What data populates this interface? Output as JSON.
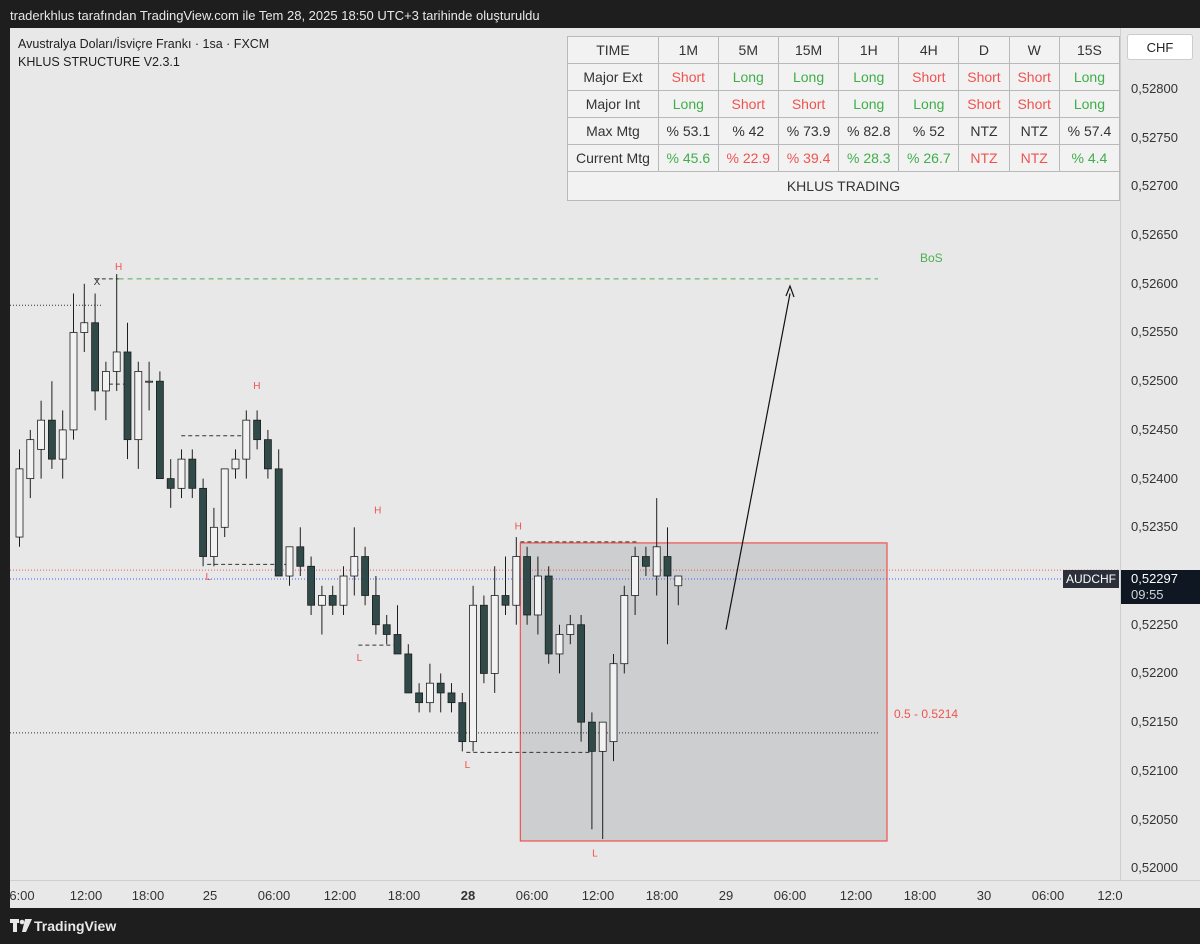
{
  "header": {
    "caption": "traderkhlus tarafından TradingView.com ile Tem 28, 2025 18:50 UTC+3 tarihinde oluşturuldu"
  },
  "legend": {
    "symbol_line": "Avustralya Doları/İsviçre Frankı · 1sa · FXCM",
    "indicator_line": "KHLUS STRUCTURE V2.3.1"
  },
  "table": {
    "headers": [
      "TIME",
      "1M",
      "5M",
      "15M",
      "1H",
      "4H",
      "D",
      "W",
      "15S"
    ],
    "rows": [
      {
        "label": "Major Ext",
        "cells": [
          {
            "text": "Short",
            "color": "#ef5350"
          },
          {
            "text": "Long",
            "color": "#3fae4a"
          },
          {
            "text": "Long",
            "color": "#3fae4a"
          },
          {
            "text": "Long",
            "color": "#3fae4a"
          },
          {
            "text": "Short",
            "color": "#ef5350"
          },
          {
            "text": "Short",
            "color": "#ef5350"
          },
          {
            "text": "Short",
            "color": "#ef5350"
          },
          {
            "text": "Long",
            "color": "#3fae4a"
          }
        ]
      },
      {
        "label": "Major Int",
        "cells": [
          {
            "text": "Long",
            "color": "#3fae4a"
          },
          {
            "text": "Short",
            "color": "#ef5350"
          },
          {
            "text": "Short",
            "color": "#ef5350"
          },
          {
            "text": "Long",
            "color": "#3fae4a"
          },
          {
            "text": "Long",
            "color": "#3fae4a"
          },
          {
            "text": "Short",
            "color": "#ef5350"
          },
          {
            "text": "Short",
            "color": "#ef5350"
          },
          {
            "text": "Long",
            "color": "#3fae4a"
          }
        ]
      },
      {
        "label": "Max Mtg",
        "cells": [
          {
            "text": "% 53.1",
            "color": "#333333"
          },
          {
            "text": "% 42",
            "color": "#333333"
          },
          {
            "text": "% 73.9",
            "color": "#333333"
          },
          {
            "text": "% 82.8",
            "color": "#333333"
          },
          {
            "text": "% 52",
            "color": "#333333"
          },
          {
            "text": "NTZ",
            "color": "#333333"
          },
          {
            "text": "NTZ",
            "color": "#333333"
          },
          {
            "text": "% 57.4",
            "color": "#333333"
          }
        ]
      },
      {
        "label": "Current Mtg",
        "cells": [
          {
            "text": "% 45.6",
            "color": "#3fae4a"
          },
          {
            "text": "% 22.9",
            "color": "#ef5350"
          },
          {
            "text": "% 39.4",
            "color": "#ef5350"
          },
          {
            "text": "% 28.3",
            "color": "#3fae4a"
          },
          {
            "text": "% 26.7",
            "color": "#3fae4a"
          },
          {
            "text": "NTZ",
            "color": "#ef5350"
          },
          {
            "text": "NTZ",
            "color": "#ef5350"
          },
          {
            "text": "% 4.4",
            "color": "#3fae4a"
          }
        ]
      }
    ],
    "footer": "KHLUS TRADING"
  },
  "price_scale": {
    "currency": "CHF",
    "symbol_tag": "AUDCHF",
    "last_price": "0,52297",
    "countdown": "09:55"
  },
  "time_scale": {
    "labels": [
      "6:00",
      "12:00",
      "18:00",
      "25",
      "06:00",
      "12:00",
      "18:00",
      "28",
      "06:00",
      "12:00",
      "18:00",
      "29",
      "06:00",
      "12:00",
      "18:00",
      "30",
      "06:00",
      "12:0"
    ]
  },
  "footer": {
    "brand": "TradingView"
  },
  "colors": {
    "bull_body": "#f2f2f2",
    "bear_body": "#2f4a48",
    "wick": "#1e1e1e",
    "accent_red": "#ef5350",
    "accent_green": "#3fae4a",
    "zone_fill": "#c9cbcc"
  },
  "chart_data": {
    "type": "candlestick",
    "symbol": "AUDCHF",
    "timeframe": "1h",
    "ylim": [
      0.5199,
      0.5284
    ],
    "y_ticks": [
      "0,52000",
      "0,52050",
      "0,52100",
      "0,52150",
      "0,52200",
      "0,52250",
      "0,52300",
      "0,52350",
      "0,52400",
      "0,52450",
      "0,52500",
      "0,52550",
      "0,52600",
      "0,52650",
      "0,52700",
      "0,52750",
      "0,52800"
    ],
    "candles": [
      {
        "o": 0.5234,
        "h": 0.5243,
        "l": 0.5233,
        "c": 0.5241
      },
      {
        "o": 0.524,
        "h": 0.5245,
        "l": 0.5238,
        "c": 0.5244
      },
      {
        "o": 0.5243,
        "h": 0.5248,
        "l": 0.524,
        "c": 0.5246
      },
      {
        "o": 0.5246,
        "h": 0.525,
        "l": 0.5241,
        "c": 0.5242
      },
      {
        "o": 0.5242,
        "h": 0.5247,
        "l": 0.524,
        "c": 0.5245
      },
      {
        "o": 0.5245,
        "h": 0.5259,
        "l": 0.5244,
        "c": 0.5255
      },
      {
        "o": 0.5255,
        "h": 0.526,
        "l": 0.5253,
        "c": 0.5256
      },
      {
        "o": 0.5256,
        "h": 0.5259,
        "l": 0.5247,
        "c": 0.5249
      },
      {
        "o": 0.5249,
        "h": 0.5252,
        "l": 0.5246,
        "c": 0.5251
      },
      {
        "o": 0.5251,
        "h": 0.5261,
        "l": 0.5249,
        "c": 0.5253
      },
      {
        "o": 0.5253,
        "h": 0.5256,
        "l": 0.5242,
        "c": 0.5244
      },
      {
        "o": 0.5244,
        "h": 0.5252,
        "l": 0.5241,
        "c": 0.5251
      },
      {
        "o": 0.525,
        "h": 0.5252,
        "l": 0.5247,
        "c": 0.525
      },
      {
        "o": 0.525,
        "h": 0.5251,
        "l": 0.524,
        "c": 0.524
      },
      {
        "o": 0.524,
        "h": 0.5242,
        "l": 0.5237,
        "c": 0.5239
      },
      {
        "o": 0.5239,
        "h": 0.5243,
        "l": 0.5238,
        "c": 0.5242
      },
      {
        "o": 0.5242,
        "h": 0.5243,
        "l": 0.5238,
        "c": 0.5239
      },
      {
        "o": 0.5239,
        "h": 0.524,
        "l": 0.5231,
        "c": 0.5232
      },
      {
        "o": 0.5232,
        "h": 0.5237,
        "l": 0.5231,
        "c": 0.5235
      },
      {
        "o": 0.5235,
        "h": 0.5241,
        "l": 0.5234,
        "c": 0.5241
      },
      {
        "o": 0.5241,
        "h": 0.5243,
        "l": 0.524,
        "c": 0.5242
      },
      {
        "o": 0.5242,
        "h": 0.5247,
        "l": 0.524,
        "c": 0.5246
      },
      {
        "o": 0.5246,
        "h": 0.5247,
        "l": 0.5243,
        "c": 0.5244
      },
      {
        "o": 0.5244,
        "h": 0.5245,
        "l": 0.524,
        "c": 0.5241
      },
      {
        "o": 0.5241,
        "h": 0.5243,
        "l": 0.523,
        "c": 0.523
      },
      {
        "o": 0.523,
        "h": 0.5233,
        "l": 0.5229,
        "c": 0.5233
      },
      {
        "o": 0.5233,
        "h": 0.5235,
        "l": 0.523,
        "c": 0.5231
      },
      {
        "o": 0.5231,
        "h": 0.5232,
        "l": 0.5226,
        "c": 0.5227
      },
      {
        "o": 0.5227,
        "h": 0.5229,
        "l": 0.5224,
        "c": 0.5228
      },
      {
        "o": 0.5228,
        "h": 0.5229,
        "l": 0.5226,
        "c": 0.5227
      },
      {
        "o": 0.5227,
        "h": 0.5231,
        "l": 0.5226,
        "c": 0.523
      },
      {
        "o": 0.523,
        "h": 0.5235,
        "l": 0.5228,
        "c": 0.5232
      },
      {
        "o": 0.5232,
        "h": 0.5233,
        "l": 0.5227,
        "c": 0.5228
      },
      {
        "o": 0.5228,
        "h": 0.523,
        "l": 0.5224,
        "c": 0.5225
      },
      {
        "o": 0.5225,
        "h": 0.5226,
        "l": 0.5223,
        "c": 0.5224
      },
      {
        "o": 0.5224,
        "h": 0.5227,
        "l": 0.5222,
        "c": 0.5222
      },
      {
        "o": 0.5222,
        "h": 0.5223,
        "l": 0.5218,
        "c": 0.5218
      },
      {
        "o": 0.5218,
        "h": 0.5219,
        "l": 0.5216,
        "c": 0.5217
      },
      {
        "o": 0.5217,
        "h": 0.5221,
        "l": 0.5216,
        "c": 0.5219
      },
      {
        "o": 0.5219,
        "h": 0.522,
        "l": 0.5216,
        "c": 0.5218
      },
      {
        "o": 0.5218,
        "h": 0.5219,
        "l": 0.5216,
        "c": 0.5217
      },
      {
        "o": 0.5217,
        "h": 0.5218,
        "l": 0.5212,
        "c": 0.5213
      },
      {
        "o": 0.5213,
        "h": 0.5229,
        "l": 0.5212,
        "c": 0.5227
      },
      {
        "o": 0.5227,
        "h": 0.5228,
        "l": 0.5219,
        "c": 0.522
      },
      {
        "o": 0.522,
        "h": 0.5231,
        "l": 0.5218,
        "c": 0.5228
      },
      {
        "o": 0.5228,
        "h": 0.5232,
        "l": 0.5226,
        "c": 0.5227
      },
      {
        "o": 0.5227,
        "h": 0.5234,
        "l": 0.5225,
        "c": 0.5232
      },
      {
        "o": 0.5232,
        "h": 0.5233,
        "l": 0.5225,
        "c": 0.5226
      },
      {
        "o": 0.5226,
        "h": 0.5232,
        "l": 0.5224,
        "c": 0.523
      },
      {
        "o": 0.523,
        "h": 0.5231,
        "l": 0.5221,
        "c": 0.5222
      },
      {
        "o": 0.5222,
        "h": 0.5225,
        "l": 0.522,
        "c": 0.5224
      },
      {
        "o": 0.5224,
        "h": 0.5226,
        "l": 0.5223,
        "c": 0.5225
      },
      {
        "o": 0.5225,
        "h": 0.5226,
        "l": 0.5213,
        "c": 0.5215
      },
      {
        "o": 0.5215,
        "h": 0.5216,
        "l": 0.5204,
        "c": 0.5212
      },
      {
        "o": 0.5212,
        "h": 0.5215,
        "l": 0.5203,
        "c": 0.5215
      },
      {
        "o": 0.5213,
        "h": 0.5222,
        "l": 0.5211,
        "c": 0.5221
      },
      {
        "o": 0.5221,
        "h": 0.5229,
        "l": 0.522,
        "c": 0.5228
      },
      {
        "o": 0.5228,
        "h": 0.5233,
        "l": 0.5226,
        "c": 0.5232
      },
      {
        "o": 0.5232,
        "h": 0.5233,
        "l": 0.523,
        "c": 0.5231
      },
      {
        "o": 0.523,
        "h": 0.5238,
        "l": 0.5228,
        "c": 0.5233
      },
      {
        "o": 0.5232,
        "h": 0.5235,
        "l": 0.5223,
        "c": 0.523
      },
      {
        "o": 0.5229,
        "h": 0.523,
        "l": 0.5227,
        "c": 0.523
      }
    ],
    "levels": [
      {
        "type": "BoS",
        "price": 0.52605
      },
      {
        "type": "fib",
        "label": "0.5 - 0.5214",
        "price": 0.52139
      }
    ],
    "zone": {
      "top": 0.52334,
      "bottom": 0.52028
    },
    "swing_labels": [
      "H",
      "X",
      "H",
      "L",
      "H",
      "L",
      "H",
      "L",
      "H",
      "L"
    ],
    "bos_label": "BoS",
    "fib_label": "0.5 - 0.5214"
  }
}
